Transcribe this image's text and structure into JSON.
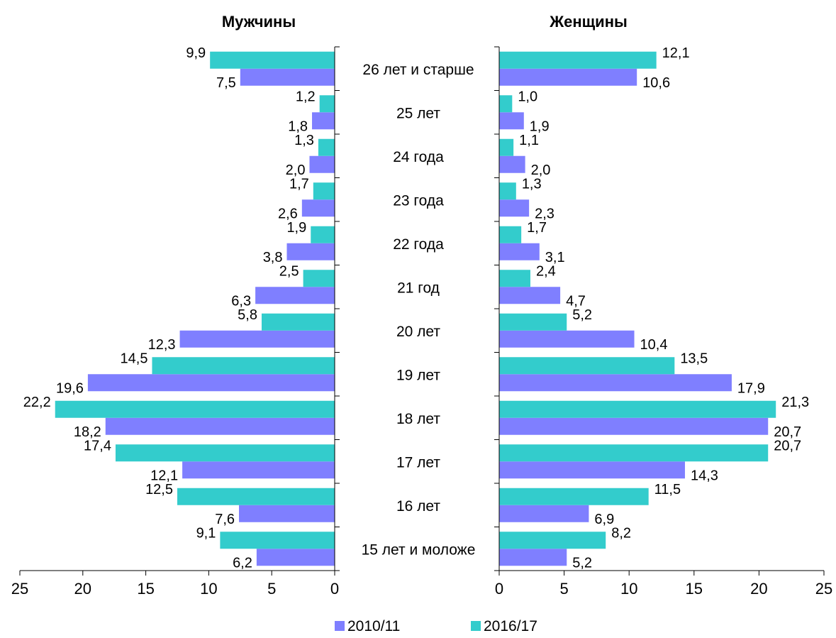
{
  "chart_data": {
    "type": "bar",
    "orientation": "horizontal",
    "layout": "butterfly",
    "categories": [
      "15 лет и моложе",
      "16 лет",
      "17 лет",
      "18 лет",
      "19 лет",
      "20 лет",
      "21 год",
      "22 года",
      "23 года",
      "24 года",
      "25 лет",
      "26 лет и старше"
    ],
    "panels": [
      {
        "title": "Мужчины",
        "direction": "reversed",
        "xlim": [
          0,
          25
        ],
        "ticks": [
          0,
          5,
          10,
          15,
          20,
          25
        ],
        "tick_labels": [
          "0",
          "5",
          "10",
          "15",
          "20",
          "25"
        ],
        "series": [
          {
            "name": "2010/11",
            "values": [
              6.2,
              7.6,
              12.1,
              18.2,
              19.6,
              12.3,
              6.3,
              3.8,
              2.6,
              2.0,
              1.8,
              7.5
            ],
            "labels": [
              "6,2",
              "7,6",
              "12,1",
              "18,2",
              "19,6",
              "12,3",
              "6,3",
              "3,8",
              "2,6",
              "2,0",
              "1,8",
              "7,5"
            ]
          },
          {
            "name": "2016/17",
            "values": [
              9.1,
              12.5,
              17.4,
              22.2,
              14.5,
              5.8,
              2.5,
              1.9,
              1.7,
              1.3,
              1.2,
              9.9
            ],
            "labels": [
              "9,1",
              "12,5",
              "17,4",
              "22,2",
              "14,5",
              "5,8",
              "2,5",
              "1,9",
              "1,7",
              "1,3",
              "1,2",
              "9,9"
            ]
          }
        ]
      },
      {
        "title": "Женщины",
        "direction": "normal",
        "xlim": [
          0,
          25
        ],
        "ticks": [
          0,
          5,
          10,
          15,
          20,
          25
        ],
        "tick_labels": [
          "0",
          "5",
          "10",
          "15",
          "20",
          "25"
        ],
        "series": [
          {
            "name": "2010/11",
            "values": [
              5.2,
              6.9,
              14.3,
              20.7,
              17.9,
              10.4,
              4.7,
              3.1,
              2.3,
              2.0,
              1.9,
              10.6
            ],
            "labels": [
              "5,2",
              "6,9",
              "14,3",
              "20,7",
              "17,9",
              "10,4",
              "4,7",
              "3,1",
              "2,3",
              "2,0",
              "1,9",
              "10,6"
            ]
          },
          {
            "name": "2016/17",
            "values": [
              8.2,
              11.5,
              20.7,
              21.3,
              13.5,
              5.2,
              2.4,
              1.7,
              1.3,
              1.1,
              1.0,
              12.1
            ],
            "labels": [
              "8,2",
              "11,5",
              "20,7",
              "21,3",
              "13,5",
              "5,2",
              "2,4",
              "1,7",
              "1,3",
              "1,1",
              "1,0",
              "12,1"
            ]
          }
        ]
      }
    ],
    "legend": {
      "position": "bottom",
      "items": [
        {
          "name": "2010/11",
          "color": "#7f7fff"
        },
        {
          "name": "2016/17",
          "color": "#33cccc"
        }
      ]
    },
    "colors": {
      "2010/11": "#7f7fff",
      "2016/17": "#33cccc",
      "axis": "#000000"
    },
    "grid": false
  }
}
